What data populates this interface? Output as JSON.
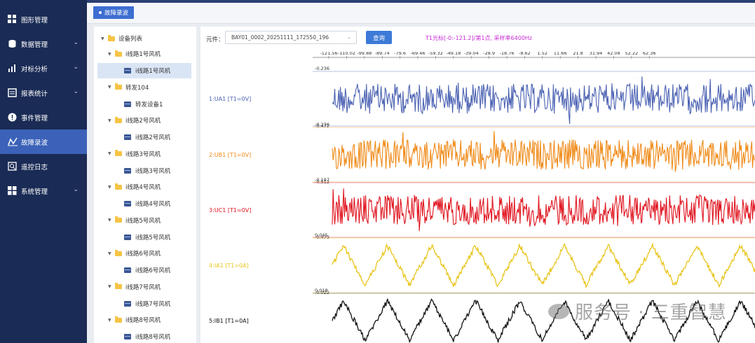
{
  "sidebar": {
    "items": [
      {
        "label": "图形管理",
        "icon": "grid-icon",
        "has_children": false,
        "active": false
      },
      {
        "label": "数据管理",
        "icon": "database-icon",
        "has_children": true,
        "active": false
      },
      {
        "label": "对标分析",
        "icon": "bar-chart-icon",
        "has_children": true,
        "active": false
      },
      {
        "label": "报表统计",
        "icon": "report-icon",
        "has_children": true,
        "active": false
      },
      {
        "label": "事件管理",
        "icon": "alert-icon",
        "has_children": false,
        "active": false
      },
      {
        "label": "故障录波",
        "icon": "recorder-icon",
        "has_children": false,
        "active": true
      },
      {
        "label": "遥控日志",
        "icon": "log-icon",
        "has_children": false,
        "active": false
      },
      {
        "label": "系统管理",
        "icon": "windows-icon",
        "has_children": true,
        "active": false
      }
    ]
  },
  "topbar": {
    "active_tab": "故障录波"
  },
  "tree": {
    "root": "设备列表",
    "nodes": [
      {
        "folder": "i线路1号风机",
        "device": "i线路1号风机",
        "selected": true
      },
      {
        "folder": "转发104",
        "device": "转发设备1",
        "selected": false
      },
      {
        "folder": "i线路2号风机",
        "device": "i线路2号风机",
        "selected": false
      },
      {
        "folder": "i线路3号风机",
        "device": "i线路3号风机",
        "selected": false
      },
      {
        "folder": "i线路4号风机",
        "device": "i线路4号风机",
        "selected": false
      },
      {
        "folder": "i线路5号风机",
        "device": "i线路5号风机",
        "selected": false
      },
      {
        "folder": "i线路6号风机",
        "device": "i线路6号风机",
        "selected": false
      },
      {
        "folder": "i线路7号风机",
        "device": "i线路7号风机",
        "selected": false
      },
      {
        "folder": "i线路8号风机",
        "device": "i线路8号风机",
        "selected": false
      }
    ]
  },
  "toolbar": {
    "element_label": "元件：",
    "selected_file": "BAY01_0002_20251111_172550_196",
    "query_label": "查询",
    "cursor_info": "T1光标[-0:-121.2]/第1点, 采样率6400Hz"
  },
  "time_axis": {
    "ticks": [
      "-121.56",
      "-110.02",
      "-99.88",
      "-89.74",
      "-79.6",
      "-69.46",
      "-59.32",
      "-49.18",
      "-39.04",
      "-28.9",
      "-18.76",
      "-8.62",
      "1.52",
      "11.66",
      "21.8",
      "31.94",
      "42.08",
      "52.22",
      "62.36"
    ]
  },
  "channels": [
    {
      "label": "1:UA1 [T1=0V]",
      "max": "-0.236",
      "min": "-0.472",
      "color": "#4b62b3",
      "shape": "noise"
    },
    {
      "label": "2:UB1 [T1=0V]",
      "max": "-0.276",
      "min": "-0.512",
      "color": "#ef8a17",
      "shape": "noise"
    },
    {
      "label": "3:UC1 [T1=0V]",
      "max": "-0.197",
      "min": "-0.473",
      "color": "#e0141e",
      "shape": "noise"
    },
    {
      "label": "4:IA1 [T1=0A]",
      "max": "0.045",
      "min": "-0.022",
      "color": "#e8c51c",
      "shape": "sine"
    },
    {
      "label": "5:IB1 [T1=0A]",
      "max": "0.018",
      "min": "-0.05",
      "color": "#111111",
      "shape": "sine"
    }
  ],
  "watermark": "服务号 · 三重智慧"
}
